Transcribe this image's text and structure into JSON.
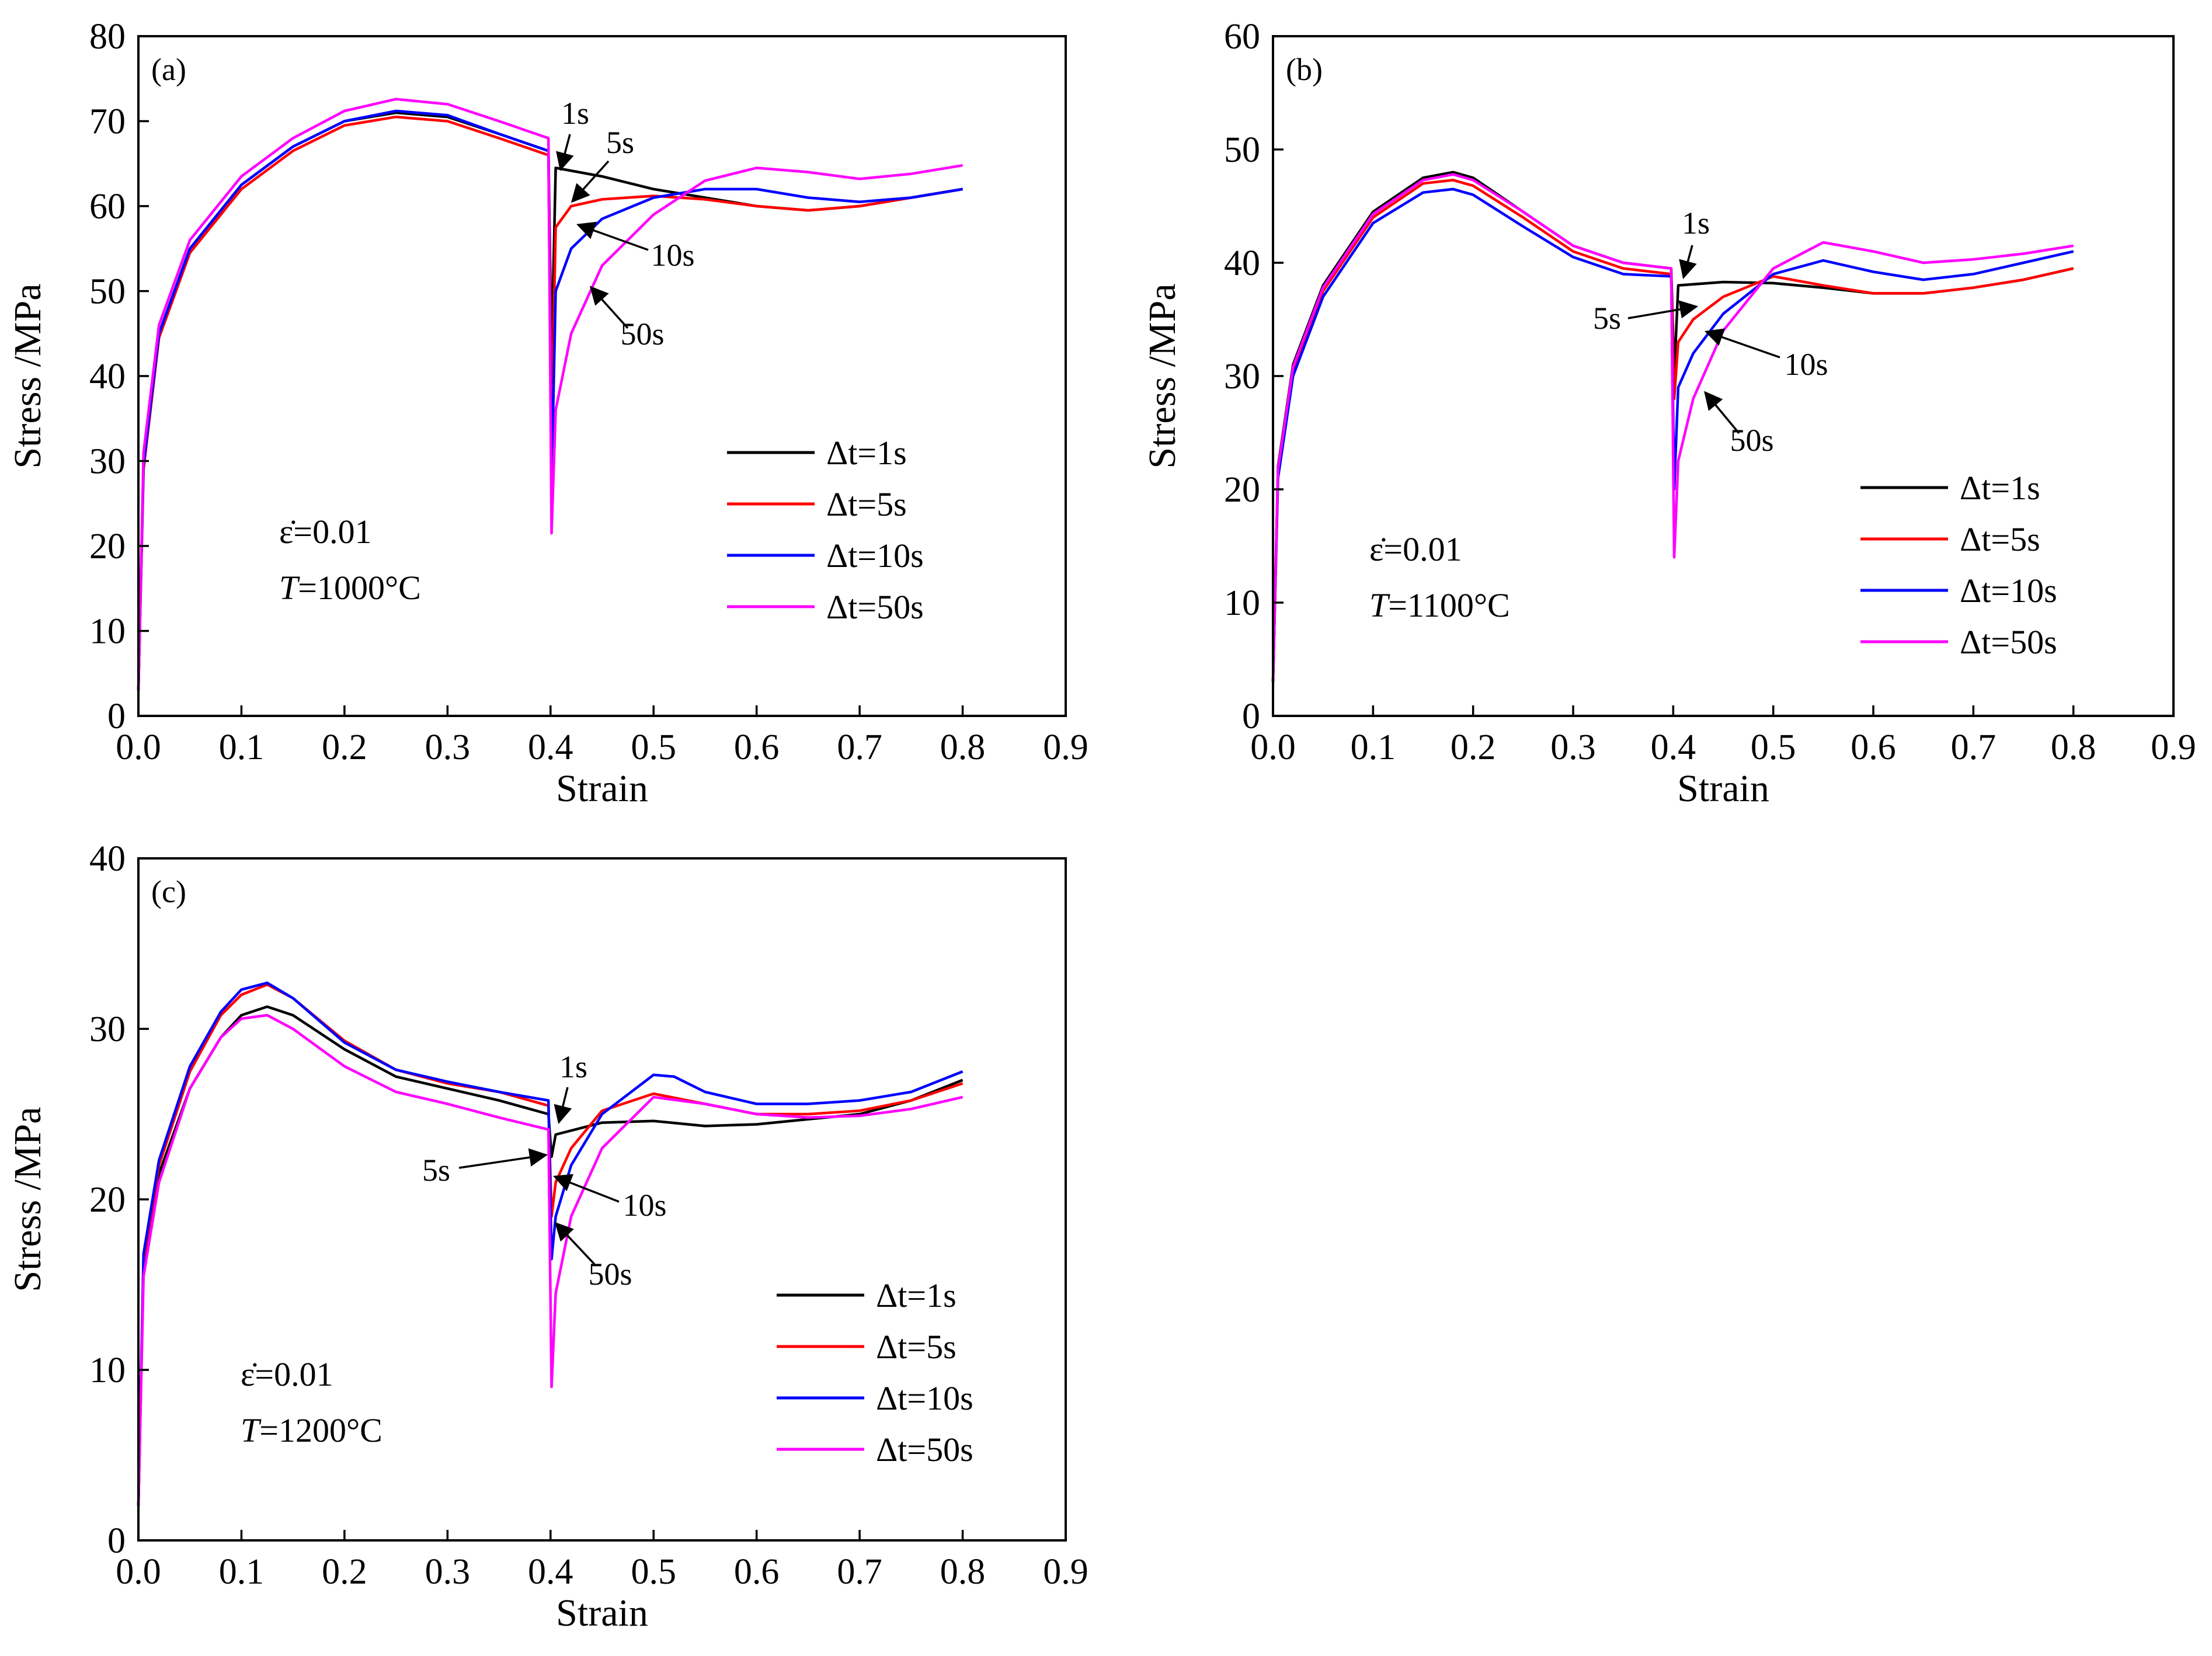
{
  "figure": {
    "legend_labels": [
      "Δt=1s",
      "Δt=5s",
      "Δt=10s",
      "Δt=50s"
    ],
    "series_colors": [
      "#000000",
      "#ff0000",
      "#0000ff",
      "#ff00ff"
    ],
    "strain_rate_label": "ε̇=0.01"
  },
  "chart_data": [
    {
      "panel": "(a)",
      "type": "line",
      "xlabel": "Strain",
      "ylabel": "Stress /MPa",
      "xlim": [
        0,
        0.9
      ],
      "ylim": [
        0,
        80
      ],
      "xticks": [
        "0.0",
        "0.1",
        "0.2",
        "0.3",
        "0.4",
        "0.5",
        "0.6",
        "0.7",
        "0.8",
        "0.9"
      ],
      "yticks": [
        "0",
        "10",
        "20",
        "30",
        "40",
        "50",
        "60",
        "70",
        "80"
      ],
      "condition": {
        "rate": "ε̇=0.01",
        "temp_prefix": "T",
        "temp_value": "=1000°C"
      },
      "legend_position": "center-right",
      "series": [
        {
          "name": "Δt=1s",
          "color": "#000000",
          "x": [
            0,
            0.005,
            0.02,
            0.05,
            0.1,
            0.15,
            0.2,
            0.25,
            0.3,
            0.35,
            0.398,
            0.401,
            0.405,
            0.45,
            0.5,
            0.55,
            0.6,
            0.65,
            0.7,
            0.75,
            0.8
          ],
          "y": [
            3,
            30,
            45,
            55,
            62.5,
            67,
            70,
            71,
            70.5,
            68.5,
            66.5,
            42,
            64.5,
            63.5,
            62,
            61,
            60,
            59.5,
            60,
            61,
            62
          ]
        },
        {
          "name": "Δt=5s",
          "color": "#ff0000",
          "x": [
            0,
            0.005,
            0.02,
            0.05,
            0.1,
            0.15,
            0.2,
            0.25,
            0.3,
            0.35,
            0.398,
            0.401,
            0.405,
            0.42,
            0.45,
            0.5,
            0.55,
            0.6,
            0.65,
            0.7,
            0.75,
            0.8
          ],
          "y": [
            3,
            29,
            44.5,
            54.5,
            62,
            66.5,
            69.5,
            70.5,
            70,
            68,
            66,
            34,
            57.5,
            60,
            60.8,
            61.2,
            60.8,
            60,
            59.5,
            60,
            61,
            62
          ]
        },
        {
          "name": "Δt=10s",
          "color": "#0000ff",
          "x": [
            0,
            0.005,
            0.02,
            0.05,
            0.1,
            0.15,
            0.2,
            0.25,
            0.3,
            0.35,
            0.398,
            0.401,
            0.405,
            0.42,
            0.45,
            0.5,
            0.55,
            0.6,
            0.65,
            0.7,
            0.75,
            0.8
          ],
          "y": [
            3,
            29.5,
            45,
            55,
            62.5,
            67,
            70,
            71.2,
            70.7,
            68.5,
            66.5,
            27,
            50,
            55,
            58.5,
            61,
            62,
            62,
            61,
            60.5,
            61,
            62
          ]
        },
        {
          "name": "Δt=50s",
          "color": "#ff00ff",
          "x": [
            0,
            0.005,
            0.02,
            0.05,
            0.1,
            0.15,
            0.2,
            0.25,
            0.3,
            0.35,
            0.398,
            0.401,
            0.405,
            0.42,
            0.45,
            0.5,
            0.55,
            0.6,
            0.65,
            0.7,
            0.75,
            0.8
          ],
          "y": [
            3,
            31,
            46,
            56,
            63.5,
            68,
            71.2,
            72.6,
            72,
            70,
            68,
            21.5,
            36,
            45,
            53,
            59,
            63,
            64.5,
            64,
            63.2,
            63.8,
            64.8
          ]
        }
      ],
      "annotations": [
        "1s",
        "5s",
        "10s",
        "50s"
      ]
    },
    {
      "panel": "(b)",
      "type": "line",
      "xlabel": "Strain",
      "ylabel": "Stress /MPa",
      "xlim": [
        0,
        0.9
      ],
      "ylim": [
        0,
        60
      ],
      "xticks": [
        "0.0",
        "0.1",
        "0.2",
        "0.3",
        "0.4",
        "0.5",
        "0.6",
        "0.7",
        "0.8",
        "0.9"
      ],
      "yticks": [
        "0",
        "10",
        "20",
        "30",
        "40",
        "50",
        "60"
      ],
      "condition": {
        "rate": "ε̇=0.01",
        "temp_prefix": "T",
        "temp_value": "=1100°C"
      },
      "legend_position": "bottom-right",
      "series": [
        {
          "name": "Δt=1s",
          "color": "#000000",
          "x": [
            0,
            0.005,
            0.02,
            0.05,
            0.1,
            0.15,
            0.18,
            0.2,
            0.25,
            0.3,
            0.35,
            0.398,
            0.401,
            0.405,
            0.45,
            0.5,
            0.55,
            0.6,
            0.65,
            0.7,
            0.75,
            0.8
          ],
          "y": [
            3,
            22,
            31,
            38,
            44.5,
            47.5,
            48,
            47.5,
            44.5,
            41.5,
            40,
            39.5,
            30,
            38,
            38.3,
            38.2,
            37.8,
            37.3,
            37.3,
            37.8,
            38.5,
            39.5
          ]
        },
        {
          "name": "Δt=5s",
          "color": "#ff0000",
          "x": [
            0,
            0.005,
            0.02,
            0.05,
            0.1,
            0.15,
            0.18,
            0.2,
            0.25,
            0.3,
            0.35,
            0.398,
            0.401,
            0.405,
            0.42,
            0.45,
            0.5,
            0.55,
            0.6,
            0.65,
            0.7,
            0.75,
            0.8
          ],
          "y": [
            3,
            21.5,
            30.5,
            37.5,
            44,
            47,
            47.3,
            46.8,
            44,
            41,
            39.5,
            39,
            28,
            33,
            35,
            37,
            38.8,
            38,
            37.3,
            37.3,
            37.8,
            38.5,
            39.5
          ]
        },
        {
          "name": "Δt=10s",
          "color": "#0000ff",
          "x": [
            0,
            0.005,
            0.02,
            0.05,
            0.1,
            0.15,
            0.18,
            0.2,
            0.25,
            0.3,
            0.35,
            0.398,
            0.401,
            0.405,
            0.42,
            0.45,
            0.5,
            0.55,
            0.6,
            0.65,
            0.7,
            0.75,
            0.8
          ],
          "y": [
            3,
            21,
            30,
            37,
            43.5,
            46.2,
            46.5,
            46,
            43.2,
            40.5,
            39,
            38.8,
            20,
            29,
            32,
            35.5,
            39,
            40.2,
            39.2,
            38.5,
            39,
            40,
            41
          ]
        },
        {
          "name": "Δt=50s",
          "color": "#ff00ff",
          "x": [
            0,
            0.005,
            0.02,
            0.05,
            0.1,
            0.15,
            0.18,
            0.2,
            0.25,
            0.3,
            0.35,
            0.398,
            0.401,
            0.405,
            0.42,
            0.45,
            0.5,
            0.55,
            0.6,
            0.65,
            0.7,
            0.75,
            0.8
          ],
          "y": [
            3,
            21.8,
            30.8,
            37.8,
            44.3,
            47.3,
            47.8,
            47.3,
            44.5,
            41.5,
            40,
            39.5,
            14,
            22.5,
            28,
            34,
            39.5,
            41.8,
            41,
            40,
            40.3,
            40.8,
            41.5
          ]
        }
      ],
      "annotations": [
        "1s",
        "5s",
        "10s",
        "50s"
      ]
    },
    {
      "panel": "(c)",
      "type": "line",
      "xlabel": "Strain",
      "ylabel": "Stress /MPa",
      "xlim": [
        0,
        0.9
      ],
      "ylim": [
        0,
        40
      ],
      "xticks": [
        "0.0",
        "0.1",
        "0.2",
        "0.3",
        "0.4",
        "0.5",
        "0.6",
        "0.7",
        "0.8",
        "0.9"
      ],
      "yticks": [
        "0",
        "10",
        "20",
        "30",
        "40"
      ],
      "condition": {
        "rate": "ε̇=0.01",
        "temp_prefix": "T",
        "temp_value": "=1200°C"
      },
      "legend_position": "bottom-right",
      "series": [
        {
          "name": "Δt=1s",
          "color": "#000000",
          "x": [
            0,
            0.005,
            0.02,
            0.05,
            0.08,
            0.1,
            0.125,
            0.15,
            0.2,
            0.25,
            0.3,
            0.35,
            0.398,
            0.401,
            0.405,
            0.45,
            0.5,
            0.55,
            0.6,
            0.65,
            0.7,
            0.75,
            0.8
          ],
          "y": [
            2,
            16,
            21.5,
            26.5,
            29.5,
            30.8,
            31.3,
            30.8,
            28.8,
            27.2,
            26.5,
            25.8,
            25,
            22.5,
            23.8,
            24.5,
            24.6,
            24.3,
            24.4,
            24.7,
            25,
            25.8,
            27
          ]
        },
        {
          "name": "Δt=5s",
          "color": "#ff0000",
          "x": [
            0,
            0.005,
            0.02,
            0.05,
            0.08,
            0.1,
            0.125,
            0.15,
            0.2,
            0.25,
            0.3,
            0.35,
            0.398,
            0.401,
            0.405,
            0.42,
            0.45,
            0.5,
            0.55,
            0.6,
            0.65,
            0.7,
            0.75,
            0.8
          ],
          "y": [
            2,
            16.5,
            22,
            27.5,
            30.8,
            32,
            32.6,
            31.8,
            29.3,
            27.6,
            26.8,
            26.3,
            25.5,
            19,
            21,
            23,
            25.2,
            26.2,
            25.6,
            25,
            25,
            25.2,
            25.8,
            26.8
          ]
        },
        {
          "name": "Δt=10s",
          "color": "#0000ff",
          "x": [
            0,
            0.005,
            0.02,
            0.05,
            0.08,
            0.1,
            0.125,
            0.15,
            0.2,
            0.25,
            0.3,
            0.35,
            0.398,
            0.401,
            0.405,
            0.42,
            0.45,
            0.5,
            0.52,
            0.55,
            0.6,
            0.65,
            0.7,
            0.75,
            0.8
          ],
          "y": [
            2,
            16.8,
            22.3,
            27.8,
            31,
            32.3,
            32.7,
            31.8,
            29.2,
            27.6,
            26.9,
            26.3,
            25.8,
            16.5,
            19,
            22,
            25,
            27.3,
            27.2,
            26.3,
            25.6,
            25.6,
            25.8,
            26.3,
            27.5
          ]
        },
        {
          "name": "Δt=50s",
          "color": "#ff00ff",
          "x": [
            0,
            0.005,
            0.02,
            0.05,
            0.08,
            0.1,
            0.125,
            0.15,
            0.2,
            0.25,
            0.3,
            0.35,
            0.398,
            0.401,
            0.405,
            0.42,
            0.45,
            0.5,
            0.55,
            0.6,
            0.65,
            0.7,
            0.75,
            0.8
          ],
          "y": [
            2,
            15.5,
            21,
            26.5,
            29.5,
            30.6,
            30.8,
            30,
            27.8,
            26.3,
            25.6,
            24.8,
            24.1,
            9,
            14.5,
            19,
            23,
            26,
            25.6,
            25,
            24.8,
            24.9,
            25.3,
            26
          ]
        }
      ],
      "annotations": [
        "1s",
        "5s",
        "10s",
        "50s"
      ]
    }
  ]
}
